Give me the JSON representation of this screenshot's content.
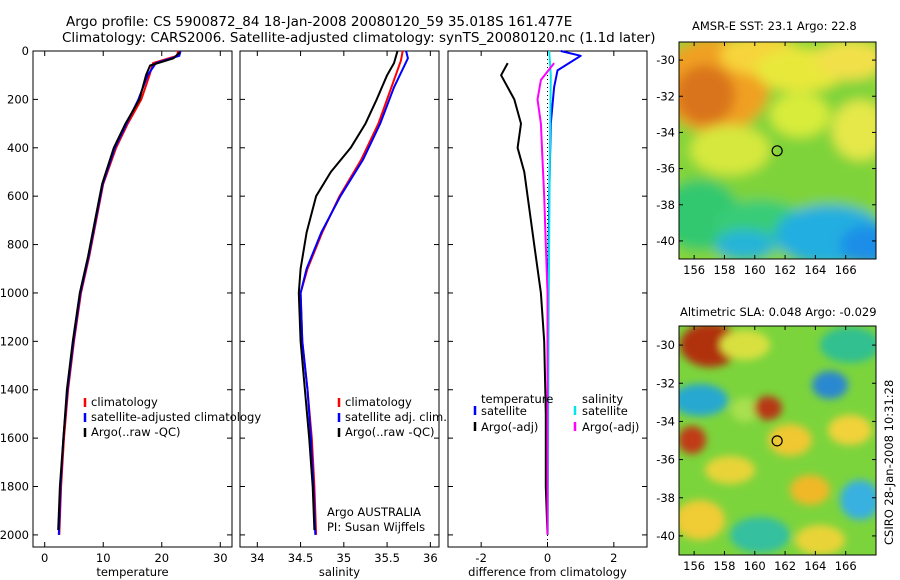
{
  "header": {
    "line1": "Argo profile: CS 5900872_84 18-Jan-2008 20080120_59 35.018S 161.477E",
    "line2": "Climatology: CARS2006. Satellite-adjusted climatology: synTS_20080120.nc (1.1d later)"
  },
  "side_label": "CSIRO 28-Jan-2008 10:31:28",
  "credits": {
    "line1": "Argo AUSTRALIA",
    "line2": "PI: Susan Wijffels"
  },
  "colors": {
    "climatology": "#ff0000",
    "satellite": "#0000ff",
    "argo": "#000000",
    "sat_diff": "#00e5ee",
    "argo_adj_diff": "#ff00ff"
  },
  "chart_data": [
    {
      "type": "line",
      "xlabel": "temperature",
      "ylabel": "",
      "xlim": [
        -2,
        32
      ],
      "ylim": [
        2050,
        0
      ],
      "y_reversed": true,
      "xticks": [
        0,
        10,
        20,
        30
      ],
      "yticks": [
        0,
        200,
        400,
        600,
        800,
        1000,
        1200,
        1400,
        1600,
        1800,
        2000
      ],
      "legend": [
        "climatology",
        "satellite-adjusted climatology",
        "Argo(..raw -QC)"
      ],
      "series": [
        {
          "name": "climatology",
          "color": "#ff0000",
          "points": [
            [
              22.8,
              0
            ],
            [
              22.6,
              20
            ],
            [
              18.5,
              50
            ],
            [
              17.9,
              100
            ],
            [
              16.5,
              200
            ],
            [
              14.2,
              300
            ],
            [
              12.2,
              400
            ],
            [
              10.0,
              550
            ],
            [
              8.8,
              700
            ],
            [
              7.6,
              850
            ],
            [
              6.2,
              1000
            ],
            [
              5.0,
              1200
            ],
            [
              4.0,
              1400
            ],
            [
              3.3,
              1600
            ],
            [
              2.8,
              1800
            ],
            [
              2.5,
              2000
            ]
          ]
        },
        {
          "name": "satellite-adjusted climatology",
          "color": "#0000ff",
          "points": [
            [
              23.2,
              0
            ],
            [
              23.0,
              20
            ],
            [
              19.0,
              50
            ],
            [
              17.6,
              100
            ],
            [
              16.0,
              200
            ],
            [
              14.0,
              300
            ],
            [
              12.0,
              400
            ],
            [
              9.9,
              550
            ],
            [
              8.7,
              700
            ],
            [
              7.5,
              850
            ],
            [
              6.1,
              1000
            ],
            [
              4.9,
              1200
            ],
            [
              3.9,
              1400
            ],
            [
              3.2,
              1600
            ],
            [
              2.7,
              1800
            ],
            [
              2.4,
              2000
            ]
          ]
        },
        {
          "name": "Argo(..raw -QC)",
          "color": "#000000",
          "points": [
            [
              23.1,
              5
            ],
            [
              22.0,
              30
            ],
            [
              18.0,
              60
            ],
            [
              17.3,
              100
            ],
            [
              16.2,
              200
            ],
            [
              13.8,
              300
            ],
            [
              11.8,
              400
            ],
            [
              9.8,
              550
            ],
            [
              8.6,
              700
            ],
            [
              7.4,
              850
            ],
            [
              6.0,
              1000
            ],
            [
              4.8,
              1200
            ],
            [
              3.8,
              1400
            ],
            [
              3.2,
              1600
            ],
            [
              2.6,
              1800
            ],
            [
              2.3,
              1980
            ]
          ]
        }
      ]
    },
    {
      "type": "line",
      "xlabel": "salinity",
      "ylabel": "",
      "xlim": [
        33.8,
        36.1
      ],
      "ylim": [
        2050,
        0
      ],
      "y_reversed": true,
      "xticks": [
        34,
        34.5,
        35,
        35.5,
        36
      ],
      "legend": [
        "climatology",
        "satellite adj. clim.",
        "Argo(..raw -QC)"
      ],
      "series": [
        {
          "name": "climatology",
          "color": "#ff0000",
          "points": [
            [
              35.68,
              0
            ],
            [
              35.66,
              40
            ],
            [
              35.55,
              150
            ],
            [
              35.4,
              300
            ],
            [
              35.2,
              450
            ],
            [
              34.95,
              600
            ],
            [
              34.75,
              750
            ],
            [
              34.58,
              900
            ],
            [
              34.5,
              1000
            ],
            [
              34.52,
              1200
            ],
            [
              34.58,
              1400
            ],
            [
              34.63,
              1600
            ],
            [
              34.66,
              1800
            ],
            [
              34.68,
              2000
            ]
          ]
        },
        {
          "name": "satellite adj. clim.",
          "color": "#0000ff",
          "points": [
            [
              35.72,
              0
            ],
            [
              35.74,
              30
            ],
            [
              35.58,
              150
            ],
            [
              35.42,
              300
            ],
            [
              35.22,
              450
            ],
            [
              34.96,
              600
            ],
            [
              34.74,
              750
            ],
            [
              34.57,
              900
            ],
            [
              34.5,
              1000
            ],
            [
              34.52,
              1200
            ],
            [
              34.58,
              1400
            ],
            [
              34.62,
              1600
            ],
            [
              34.65,
              1800
            ],
            [
              34.67,
              2000
            ]
          ]
        },
        {
          "name": "Argo(..raw -QC)",
          "color": "#000000",
          "points": [
            [
              35.62,
              0
            ],
            [
              35.58,
              50
            ],
            [
              35.5,
              100
            ],
            [
              35.38,
              200
            ],
            [
              35.25,
              300
            ],
            [
              35.08,
              400
            ],
            [
              34.85,
              500
            ],
            [
              34.68,
              600
            ],
            [
              34.57,
              750
            ],
            [
              34.5,
              900
            ],
            [
              34.48,
              1000
            ],
            [
              34.5,
              1200
            ],
            [
              34.55,
              1400
            ],
            [
              34.6,
              1600
            ],
            [
              34.64,
              1800
            ],
            [
              34.66,
              1980
            ]
          ]
        }
      ]
    },
    {
      "type": "line",
      "xlabel": "difference from climatology",
      "ylabel": "",
      "xlim": [
        -3,
        3
      ],
      "ylim": [
        2050,
        0
      ],
      "y_reversed": true,
      "xticks": [
        -2,
        0,
        2
      ],
      "legend": [
        "temperature",
        "satellite",
        "Argo(-adj)",
        "salinity",
        "satellite",
        "Argo(-adj)"
      ],
      "series": [
        {
          "name": "temperature satellite",
          "color": "#0000ff",
          "points": [
            [
              0.4,
              0
            ],
            [
              1.0,
              20
            ],
            [
              0.3,
              80
            ],
            [
              0.2,
              150
            ],
            [
              0.1,
              300
            ],
            [
              0.05,
              600
            ],
            [
              0.02,
              1000
            ],
            [
              0.0,
              1500
            ],
            [
              0.0,
              2000
            ]
          ]
        },
        {
          "name": "temperature Argo(-adj)",
          "color": "#000000",
          "points": [
            [
              -1.2,
              50
            ],
            [
              -1.4,
              100
            ],
            [
              -1.0,
              200
            ],
            [
              -0.8,
              300
            ],
            [
              -0.9,
              400
            ],
            [
              -0.7,
              500
            ],
            [
              -0.6,
              600
            ],
            [
              -0.5,
              700
            ],
            [
              -0.4,
              800
            ],
            [
              -0.2,
              1000
            ],
            [
              -0.1,
              1200
            ],
            [
              -0.05,
              1500
            ],
            [
              -0.05,
              1800
            ],
            [
              0.0,
              2000
            ]
          ]
        },
        {
          "name": "salinity satellite",
          "color": "#00e5ee",
          "points": [
            [
              0.05,
              0
            ],
            [
              0.1,
              100
            ],
            [
              0.08,
              300
            ],
            [
              0.06,
              600
            ],
            [
              0.04,
              1000
            ],
            [
              0.02,
              1500
            ],
            [
              0.01,
              2000
            ]
          ]
        },
        {
          "name": "salinity Argo(-adj)",
          "color": "#ff00ff",
          "points": [
            [
              0.2,
              50
            ],
            [
              -0.2,
              120
            ],
            [
              -0.3,
              200
            ],
            [
              -0.2,
              300
            ],
            [
              -0.15,
              450
            ],
            [
              -0.1,
              600
            ],
            [
              -0.05,
              800
            ],
            [
              0.0,
              1000
            ],
            [
              0.0,
              1500
            ],
            [
              0.0,
              2000
            ]
          ]
        }
      ]
    },
    {
      "type": "heatmap",
      "title": "AMSR-E SST: 23.1  Argo: 22.8",
      "xticks": [
        156,
        158,
        160,
        162,
        164,
        166
      ],
      "yticks": [
        -30,
        -32,
        -34,
        -36,
        -38,
        -40
      ],
      "xlim": [
        155,
        168
      ],
      "ylim": [
        -41,
        -29
      ],
      "marker": [
        161.477,
        -35.018
      ]
    },
    {
      "type": "heatmap",
      "title": "Altimetric SLA: 0.048  Argo: -0.029",
      "xticks": [
        156,
        158,
        160,
        162,
        164,
        166
      ],
      "yticks": [
        -30,
        -32,
        -34,
        -36,
        -38,
        -40
      ],
      "xlim": [
        155,
        168
      ],
      "ylim": [
        -41,
        -29
      ],
      "marker": [
        161.477,
        -35.018
      ]
    }
  ]
}
